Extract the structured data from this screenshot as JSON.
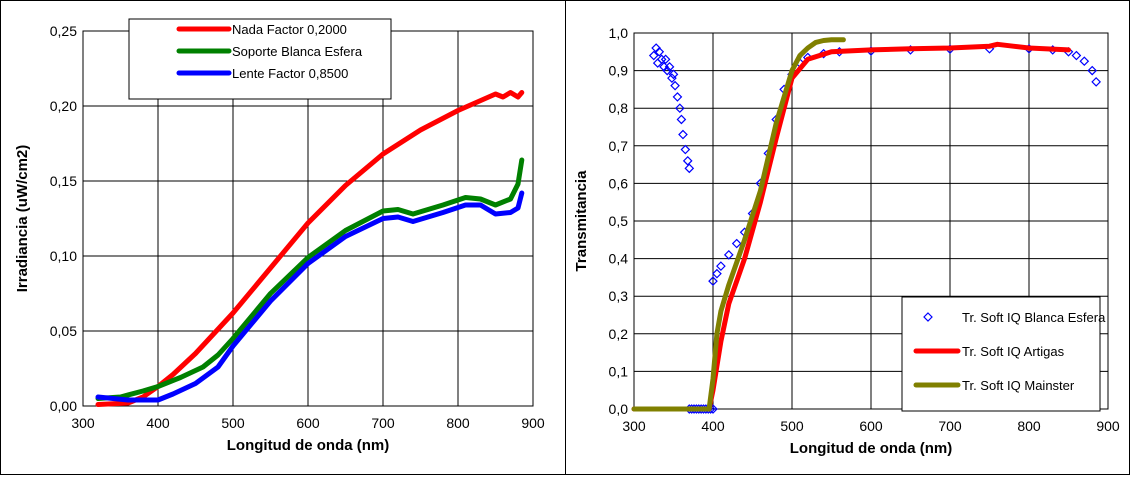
{
  "chart_data": [
    {
      "type": "line",
      "xlabel": "Longitud de onda (nm)",
      "ylabel": "Irradiancia (uW/cm2)",
      "xlim": [
        300,
        900
      ],
      "ylim": [
        0,
        0.25
      ],
      "xticks": [
        "300",
        "400",
        "500",
        "600",
        "700",
        "800",
        "900"
      ],
      "yticks": [
        "0,00",
        "0,05",
        "0,10",
        "0,15",
        "0,20",
        "0,25"
      ],
      "grid": true,
      "legend_position": "top-center",
      "series": [
        {
          "name": "Nada Factor 0,2000",
          "color": "#ff0000",
          "x": [
            320,
            360,
            380,
            400,
            420,
            450,
            500,
            550,
            600,
            650,
            700,
            750,
            800,
            850,
            860,
            870,
            880,
            885
          ],
          "y": [
            0.001,
            0.002,
            0.006,
            0.013,
            0.021,
            0.035,
            0.062,
            0.092,
            0.122,
            0.147,
            0.168,
            0.184,
            0.197,
            0.208,
            0.206,
            0.209,
            0.206,
            0.209
          ]
        },
        {
          "name": "Soporte Blanca Esfera",
          "color": "#008000",
          "x": [
            320,
            350,
            380,
            400,
            430,
            460,
            480,
            500,
            550,
            600,
            650,
            700,
            720,
            740,
            780,
            810,
            830,
            850,
            870,
            880,
            885
          ],
          "y": [
            0.005,
            0.006,
            0.01,
            0.013,
            0.019,
            0.026,
            0.034,
            0.045,
            0.075,
            0.099,
            0.117,
            0.13,
            0.131,
            0.128,
            0.134,
            0.139,
            0.138,
            0.134,
            0.138,
            0.148,
            0.164
          ]
        },
        {
          "name": "Lente Factor 0,8500",
          "color": "#0000ff",
          "x": [
            320,
            340,
            360,
            400,
            420,
            450,
            480,
            500,
            550,
            600,
            650,
            700,
            720,
            740,
            780,
            810,
            830,
            850,
            870,
            880,
            885
          ],
          "y": [
            0.006,
            0.005,
            0.004,
            0.004,
            0.008,
            0.015,
            0.026,
            0.04,
            0.07,
            0.095,
            0.113,
            0.125,
            0.126,
            0.123,
            0.129,
            0.134,
            0.134,
            0.128,
            0.129,
            0.132,
            0.142
          ]
        }
      ]
    },
    {
      "type": "line",
      "xlabel": "Longitud de onda (nm)",
      "ylabel": "Transmitancia",
      "xlim": [
        300,
        900
      ],
      "ylim": [
        0,
        1
      ],
      "xticks": [
        "300",
        "400",
        "500",
        "600",
        "700",
        "800",
        "900"
      ],
      "yticks": [
        "0,0",
        "0,1",
        "0,2",
        "0,3",
        "0,4",
        "0,5",
        "0,6",
        "0,7",
        "0,8",
        "0,9",
        "1,0"
      ],
      "grid": true,
      "legend_position": "bottom-right",
      "series": [
        {
          "name": "Tr. Soft IQ Blanca Esfera",
          "color": "#0000ff",
          "marker": "diamond",
          "x": [
            325,
            328,
            330,
            332,
            335,
            338,
            340,
            342,
            345,
            348,
            350,
            352,
            355,
            358,
            360,
            362,
            365,
            368,
            370,
            400,
            405,
            410,
            420,
            430,
            440,
            450,
            460,
            470,
            480,
            490,
            500,
            510,
            520,
            540,
            560,
            600,
            650,
            700,
            750,
            800,
            830,
            850,
            860,
            870,
            880,
            885
          ],
          "y": [
            0.94,
            0.96,
            0.92,
            0.95,
            0.93,
            0.91,
            0.93,
            0.9,
            0.91,
            0.88,
            0.89,
            0.86,
            0.83,
            0.8,
            0.77,
            0.73,
            0.69,
            0.66,
            0.64,
            0.34,
            0.36,
            0.38,
            0.41,
            0.44,
            0.47,
            0.52,
            0.6,
            0.68,
            0.77,
            0.85,
            0.89,
            0.92,
            0.935,
            0.945,
            0.95,
            0.952,
            0.955,
            0.957,
            0.958,
            0.958,
            0.955,
            0.95,
            0.94,
            0.925,
            0.9,
            0.87
          ]
        },
        {
          "name": "Tr. Soft IQ Artigas",
          "color": "#ff0000",
          "x": [
            300,
            395,
            400,
            410,
            420,
            440,
            460,
            480,
            500,
            520,
            550,
            600,
            650,
            700,
            750,
            760,
            780,
            800,
            850
          ],
          "y": [
            0.0,
            0.0,
            0.05,
            0.18,
            0.28,
            0.4,
            0.55,
            0.72,
            0.88,
            0.93,
            0.95,
            0.955,
            0.958,
            0.96,
            0.965,
            0.97,
            0.965,
            0.96,
            0.955
          ]
        },
        {
          "name": "Tr. Soft IQ Mainster",
          "color": "#808000",
          "x": [
            300,
            395,
            400,
            405,
            410,
            420,
            430,
            440,
            460,
            480,
            500,
            510,
            520,
            530,
            540,
            550,
            565
          ],
          "y": [
            0.0,
            0.0,
            0.08,
            0.2,
            0.26,
            0.33,
            0.39,
            0.45,
            0.58,
            0.76,
            0.9,
            0.94,
            0.96,
            0.975,
            0.98,
            0.982,
            0.982
          ]
        }
      ]
    }
  ]
}
